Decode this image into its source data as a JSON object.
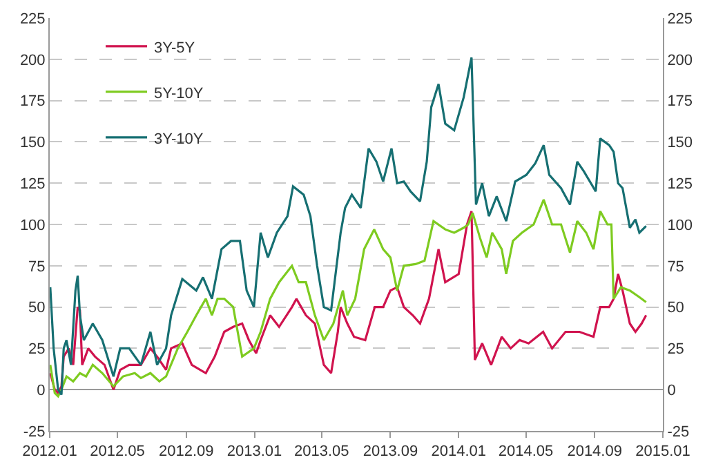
{
  "chart_data": {
    "type": "line",
    "xlim": [
      "2012-01-01",
      "2015-01-01"
    ],
    "xticks": [
      {
        "value": "2012-01-01",
        "label": "2012.01"
      },
      {
        "value": "2012-05-01",
        "label": "2012.05"
      },
      {
        "value": "2012-09-01",
        "label": "2012.09"
      },
      {
        "value": "2013-01-01",
        "label": "2013.01"
      },
      {
        "value": "2013-05-01",
        "label": "2013.05"
      },
      {
        "value": "2013-09-01",
        "label": "2013.09"
      },
      {
        "value": "2014-01-01",
        "label": "2014.01"
      },
      {
        "value": "2014-05-01",
        "label": "2014.05"
      },
      {
        "value": "2014-09-01",
        "label": "2014.09"
      },
      {
        "value": "2015-01-01",
        "label": "2015.01"
      }
    ],
    "ylim": [
      -25,
      225
    ],
    "yticks": [
      -25,
      0,
      25,
      50,
      75,
      100,
      125,
      150,
      175,
      200,
      225
    ],
    "y2lim": [
      -25,
      225
    ],
    "y2ticks": [
      -25,
      0,
      25,
      50,
      75,
      100,
      125,
      150,
      175,
      200,
      225
    ],
    "grid": "y",
    "legend": "top left",
    "marker": "none",
    "line_style": "solid",
    "series": [
      {
        "name": "3Y-5Y",
        "color": "#d0134e",
        "x": [
          "2012-01-02",
          "2012-01-10",
          "2012-01-16",
          "2012-01-22",
          "2012-01-26",
          "2012-02-04",
          "2012-02-12",
          "2012-02-20",
          "2012-02-24",
          "2012-02-28",
          "2012-03-10",
          "2012-03-22",
          "2012-04-08",
          "2012-04-24",
          "2012-05-06",
          "2012-05-22",
          "2012-06-12",
          "2012-06-29",
          "2012-07-11",
          "2012-07-27",
          "2012-08-05",
          "2012-08-25",
          "2012-09-11",
          "2012-10-06",
          "2012-10-22",
          "2012-11-08",
          "2012-11-24",
          "2012-12-10",
          "2012-12-22",
          "2013-01-04",
          "2013-01-12",
          "2013-01-29",
          "2013-02-14",
          "2013-03-09",
          "2013-03-17",
          "2013-04-03",
          "2013-04-19",
          "2013-05-05",
          "2013-05-18",
          "2013-05-30",
          "2013-06-04",
          "2013-06-16",
          "2013-06-28",
          "2013-07-18",
          "2013-08-04",
          "2013-08-19",
          "2013-09-01",
          "2013-09-13",
          "2013-09-25",
          "2013-10-11",
          "2013-10-24",
          "2013-11-09",
          "2013-11-26",
          "2013-12-08",
          "2014-01-01",
          "2014-01-16",
          "2014-01-24",
          "2014-01-30",
          "2014-02-12",
          "2014-02-28",
          "2014-03-19",
          "2014-04-04",
          "2014-04-20",
          "2014-05-06",
          "2014-06-01",
          "2014-06-17",
          "2014-07-11",
          "2014-08-05",
          "2014-08-30",
          "2014-09-11",
          "2014-09-27",
          "2014-10-05",
          "2014-10-13",
          "2014-10-21",
          "2014-11-03",
          "2014-11-13",
          "2014-11-24",
          "2014-12-02"
        ],
        "values": [
          10,
          0,
          -2,
          2,
          20,
          25,
          15,
          50,
          48,
          15,
          25,
          20,
          15,
          0,
          12,
          15,
          15,
          25,
          20,
          12,
          25,
          28,
          15,
          10,
          20,
          35,
          38,
          40,
          30,
          22,
          30,
          45,
          38,
          50,
          55,
          45,
          40,
          15,
          10,
          35,
          50,
          40,
          32,
          30,
          50,
          50,
          60,
          62,
          50,
          45,
          40,
          55,
          85,
          65,
          70,
          100,
          108,
          18,
          28,
          15,
          32,
          25,
          30,
          28,
          35,
          25,
          35,
          35,
          32,
          50,
          50,
          55,
          70,
          60,
          40,
          35,
          40,
          45
        ]
      },
      {
        "name": "5Y-10Y",
        "color": "#7ecb20",
        "x": [
          "2012-01-02",
          "2012-01-10",
          "2012-01-16",
          "2012-01-22",
          "2012-01-31",
          "2012-02-12",
          "2012-02-24",
          "2012-03-06",
          "2012-03-18",
          "2012-04-04",
          "2012-04-24",
          "2012-05-11",
          "2012-06-01",
          "2012-06-12",
          "2012-06-29",
          "2012-07-15",
          "2012-07-27",
          "2012-08-17",
          "2012-09-03",
          "2012-09-19",
          "2012-10-06",
          "2012-10-17",
          "2012-10-27",
          "2012-11-08",
          "2012-11-24",
          "2012-12-10",
          "2012-12-31",
          "2013-01-12",
          "2013-01-29",
          "2013-02-14",
          "2013-03-09",
          "2013-03-21",
          "2013-04-03",
          "2013-04-19",
          "2013-05-05",
          "2013-05-22",
          "2013-06-08",
          "2013-06-16",
          "2013-06-30",
          "2013-07-16",
          "2013-08-03",
          "2013-08-19",
          "2013-09-01",
          "2013-09-13",
          "2013-09-25",
          "2013-10-16",
          "2013-11-01",
          "2013-11-17",
          "2013-12-08",
          "2013-12-24",
          "2014-01-10",
          "2014-01-18",
          "2014-01-26",
          "2014-02-08",
          "2014-02-20",
          "2014-03-02",
          "2014-03-19",
          "2014-03-27",
          "2014-04-08",
          "2014-04-24",
          "2014-05-15",
          "2014-06-02",
          "2014-06-17",
          "2014-07-03",
          "2014-07-19",
          "2014-08-01",
          "2014-08-17",
          "2014-08-30",
          "2014-09-11",
          "2014-09-24",
          "2014-10-01",
          "2014-10-05",
          "2014-10-18",
          "2014-11-03",
          "2014-11-20",
          "2014-12-02"
        ],
        "values": [
          15,
          -2,
          -4,
          0,
          8,
          5,
          10,
          8,
          15,
          10,
          2,
          8,
          10,
          7,
          10,
          5,
          8,
          25,
          35,
          45,
          55,
          45,
          55,
          55,
          50,
          20,
          25,
          35,
          55,
          65,
          75,
          65,
          65,
          45,
          30,
          40,
          60,
          45,
          55,
          85,
          97,
          85,
          80,
          60,
          75,
          76,
          78,
          102,
          97,
          95,
          98,
          100,
          107,
          92,
          80,
          95,
          85,
          70,
          90,
          95,
          100,
          115,
          100,
          100,
          83,
          102,
          95,
          85,
          108,
          100,
          100,
          55,
          62,
          60,
          56,
          53
        ]
      },
      {
        "name": "3Y-10Y",
        "color": "#166f72",
        "x": [
          "2012-01-02",
          "2012-01-08",
          "2012-01-16",
          "2012-01-22",
          "2012-01-26",
          "2012-01-31",
          "2012-02-08",
          "2012-02-16",
          "2012-02-20",
          "2012-02-24",
          "2012-03-02",
          "2012-03-10",
          "2012-03-18",
          "2012-04-04",
          "2012-04-24",
          "2012-05-06",
          "2012-05-22",
          "2012-06-12",
          "2012-06-29",
          "2012-07-11",
          "2012-07-27",
          "2012-08-05",
          "2012-08-25",
          "2012-09-19",
          "2012-10-01",
          "2012-10-17",
          "2012-11-03",
          "2012-11-20",
          "2012-12-06",
          "2012-12-18",
          "2012-12-31",
          "2013-01-12",
          "2013-01-25",
          "2013-02-10",
          "2013-03-01",
          "2013-03-11",
          "2013-03-30",
          "2013-04-11",
          "2013-04-23",
          "2013-05-05",
          "2013-05-18",
          "2013-06-04",
          "2013-06-12",
          "2013-06-24",
          "2013-07-10",
          "2013-07-24",
          "2013-08-07",
          "2013-08-19",
          "2013-09-03",
          "2013-09-13",
          "2013-09-25",
          "2013-10-07",
          "2013-10-24",
          "2013-11-05",
          "2013-11-13",
          "2013-11-26",
          "2013-12-08",
          "2013-12-24",
          "2014-01-10",
          "2014-01-24",
          "2014-02-01",
          "2014-02-12",
          "2014-02-24",
          "2014-03-10",
          "2014-03-27",
          "2014-04-12",
          "2014-05-02",
          "2014-05-18",
          "2014-06-02",
          "2014-06-12",
          "2014-07-03",
          "2014-07-19",
          "2014-08-01",
          "2014-08-13",
          "2014-09-03",
          "2014-09-11",
          "2014-09-27",
          "2014-10-05",
          "2014-10-13",
          "2014-10-21",
          "2014-11-03",
          "2014-11-13",
          "2014-11-20",
          "2014-12-02"
        ],
        "values": [
          62,
          25,
          0,
          -3,
          25,
          30,
          15,
          60,
          69,
          45,
          30,
          35,
          40,
          30,
          8,
          25,
          25,
          15,
          35,
          15,
          25,
          45,
          67,
          60,
          68,
          55,
          85,
          90,
          90,
          60,
          50,
          95,
          80,
          95,
          105,
          123,
          118,
          105,
          75,
          50,
          48,
          95,
          110,
          118,
          110,
          146,
          138,
          126,
          146,
          125,
          126,
          120,
          114,
          138,
          171,
          185,
          161,
          157,
          177,
          201,
          112,
          125,
          105,
          117,
          102,
          126,
          130,
          137,
          148,
          130,
          122,
          112,
          138,
          132,
          120,
          152,
          148,
          144,
          125,
          122,
          98,
          103,
          95,
          99
        ]
      }
    ]
  }
}
